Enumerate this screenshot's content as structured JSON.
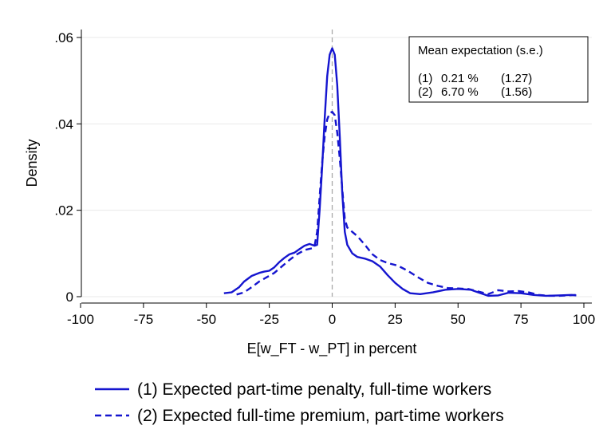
{
  "chart_data": {
    "type": "line",
    "xlabel": "E[w_FT - w_PT] in percent",
    "ylabel": "Density",
    "xlim": [
      -100,
      100
    ],
    "ylim": [
      0,
      0.06
    ],
    "xticks": [
      -100,
      -75,
      -50,
      -25,
      0,
      25,
      50,
      75,
      100
    ],
    "xtick_labels": [
      "-100",
      "-75",
      "-50",
      "-25",
      "0",
      "25",
      "50",
      "75",
      "100"
    ],
    "yticks": [
      0,
      0.02,
      0.04,
      0.06
    ],
    "ytick_labels": [
      "0",
      ".02",
      ".04",
      ".06"
    ],
    "grid": "horizontal",
    "reference_line_x": 0,
    "legend_position": "bottom",
    "colors": {
      "line": "#1515cf",
      "reference": "#aaaaaa",
      "grid": "#eaeaea"
    },
    "series": [
      {
        "name": "(1) Expected part-time penalty, full-time workers",
        "style": "solid",
        "points": [
          [
            -43,
            0.0008
          ],
          [
            -40,
            0.001
          ],
          [
            -37,
            0.0022
          ],
          [
            -35,
            0.0035
          ],
          [
            -32,
            0.0048
          ],
          [
            -29,
            0.0055
          ],
          [
            -27,
            0.0058
          ],
          [
            -25,
            0.006
          ],
          [
            -23,
            0.0068
          ],
          [
            -21,
            0.008
          ],
          [
            -19,
            0.009
          ],
          [
            -17,
            0.0098
          ],
          [
            -15,
            0.0102
          ],
          [
            -13,
            0.011
          ],
          [
            -11,
            0.0118
          ],
          [
            -9,
            0.0122
          ],
          [
            -7,
            0.0118
          ],
          [
            -6,
            0.012
          ],
          [
            -5,
            0.02
          ],
          [
            -4,
            0.03
          ],
          [
            -3,
            0.041
          ],
          [
            -2,
            0.051
          ],
          [
            -1,
            0.056
          ],
          [
            0,
            0.0575
          ],
          [
            1,
            0.056
          ],
          [
            2,
            0.049
          ],
          [
            3,
            0.037
          ],
          [
            4,
            0.024
          ],
          [
            5,
            0.015
          ],
          [
            6,
            0.012
          ],
          [
            8,
            0.01
          ],
          [
            10,
            0.0092
          ],
          [
            13,
            0.0088
          ],
          [
            16,
            0.0082
          ],
          [
            19,
            0.007
          ],
          [
            22,
            0.005
          ],
          [
            25,
            0.0032
          ],
          [
            28,
            0.0018
          ],
          [
            31,
            0.0008
          ],
          [
            35,
            0.0006
          ],
          [
            40,
            0.001
          ],
          [
            45,
            0.0016
          ],
          [
            50,
            0.0018
          ],
          [
            55,
            0.0016
          ],
          [
            58,
            0.001
          ],
          [
            62,
            0.0002
          ],
          [
            66,
            0.0003
          ],
          [
            70,
            0.0009
          ],
          [
            75,
            0.0008
          ],
          [
            80,
            0.0004
          ],
          [
            85,
            0.0002
          ],
          [
            90,
            0.0003
          ],
          [
            95,
            0.0004
          ],
          [
            97,
            0.0003
          ]
        ]
      },
      {
        "name": "(2) Expected full-time premium, part-time workers",
        "style": "dashed",
        "points": [
          [
            -38,
            0.0005
          ],
          [
            -35,
            0.001
          ],
          [
            -32,
            0.0022
          ],
          [
            -29,
            0.0035
          ],
          [
            -26,
            0.0045
          ],
          [
            -23,
            0.0055
          ],
          [
            -20,
            0.007
          ],
          [
            -17,
            0.0085
          ],
          [
            -14,
            0.0098
          ],
          [
            -11,
            0.0108
          ],
          [
            -8,
            0.0112
          ],
          [
            -7,
            0.0118
          ],
          [
            -6,
            0.015
          ],
          [
            -5,
            0.023
          ],
          [
            -4,
            0.031
          ],
          [
            -3,
            0.037
          ],
          [
            -2,
            0.041
          ],
          [
            -1,
            0.0425
          ],
          [
            0,
            0.0428
          ],
          [
            1,
            0.042
          ],
          [
            2,
            0.038
          ],
          [
            3,
            0.032
          ],
          [
            4,
            0.025
          ],
          [
            5,
            0.018
          ],
          [
            6,
            0.016
          ],
          [
            8,
            0.015
          ],
          [
            10,
            0.014
          ],
          [
            13,
            0.012
          ],
          [
            16,
            0.0098
          ],
          [
            19,
            0.0085
          ],
          [
            22,
            0.0078
          ],
          [
            26,
            0.0072
          ],
          [
            30,
            0.006
          ],
          [
            34,
            0.0045
          ],
          [
            38,
            0.0032
          ],
          [
            42,
            0.0025
          ],
          [
            46,
            0.002
          ],
          [
            50,
            0.0019
          ],
          [
            54,
            0.0018
          ],
          [
            58,
            0.0012
          ],
          [
            62,
            0.0006
          ],
          [
            66,
            0.0015
          ],
          [
            70,
            0.0012
          ],
          [
            74,
            0.0013
          ],
          [
            78,
            0.001
          ],
          [
            82,
            0.0004
          ],
          [
            86,
            0.0002
          ],
          [
            90,
            0.0002
          ],
          [
            94,
            0.0003
          ],
          [
            97,
            0.0004
          ]
        ]
      }
    ],
    "annotation": {
      "title": "Mean expectation (s.e.)",
      "rows": [
        {
          "label": "(1)",
          "value": "0.21 %",
          "se": "(1.27)"
        },
        {
          "label": "(2)",
          "value": "6.70 %",
          "se": "(1.56)"
        }
      ]
    }
  }
}
